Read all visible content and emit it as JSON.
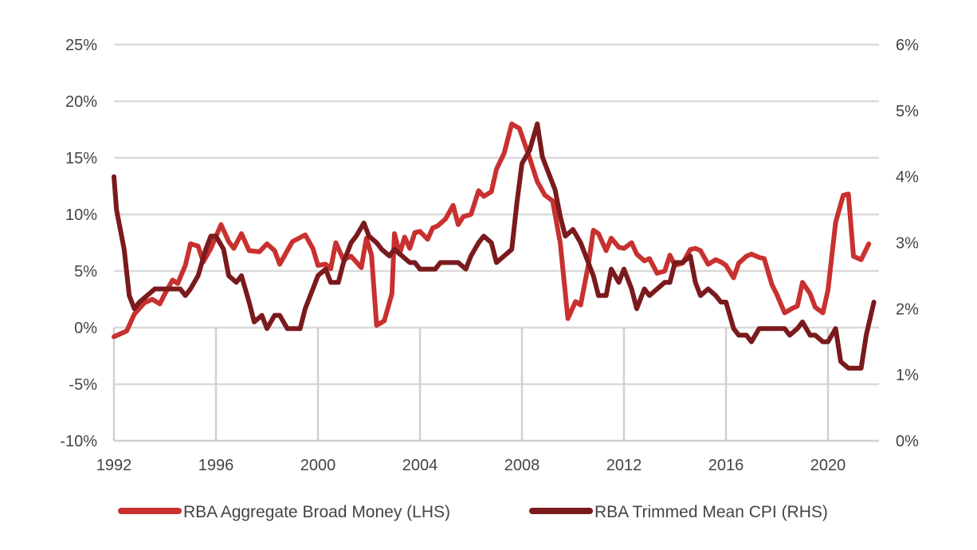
{
  "chart_data": {
    "type": "line",
    "title": "",
    "x_axis": {
      "min": 1992,
      "max": 2022,
      "tick_values": [
        1992,
        1996,
        2000,
        2004,
        2008,
        2012,
        2016,
        2020
      ],
      "tick_labels": [
        "1992",
        "1996",
        "2000",
        "2004",
        "2008",
        "2012",
        "2016",
        "2020"
      ]
    },
    "y_left": {
      "min": -10,
      "max": 25,
      "tick_values": [
        -10,
        -5,
        0,
        5,
        10,
        15,
        20,
        25
      ],
      "tick_labels": [
        "-10%",
        "-5%",
        "0%",
        "5%",
        "10%",
        "15%",
        "20%",
        "25%"
      ]
    },
    "y_right": {
      "min": 0,
      "max": 6,
      "tick_values": [
        0,
        1,
        2,
        3,
        4,
        5,
        6
      ],
      "tick_labels": [
        "0%",
        "1%",
        "2%",
        "3%",
        "4%",
        "5%",
        "6%"
      ]
    },
    "grid": "horizontal",
    "legend_position": "bottom",
    "series": [
      {
        "name": "RBA Aggregate Broad Money (LHS)",
        "axis": "left",
        "color": "#c8312f",
        "points": [
          [
            1992.0,
            -0.8
          ],
          [
            1992.5,
            -0.3
          ],
          [
            1992.8,
            1.2
          ],
          [
            1993.2,
            2.2
          ],
          [
            1993.5,
            2.5
          ],
          [
            1993.8,
            2.1
          ],
          [
            1994.0,
            3.0
          ],
          [
            1994.3,
            4.2
          ],
          [
            1994.5,
            3.9
          ],
          [
            1994.8,
            5.5
          ],
          [
            1995.0,
            7.4
          ],
          [
            1995.3,
            7.2
          ],
          [
            1995.5,
            5.8
          ],
          [
            1995.8,
            7.0
          ],
          [
            1996.2,
            9.1
          ],
          [
            1996.5,
            7.6
          ],
          [
            1996.7,
            7.0
          ],
          [
            1997.0,
            8.3
          ],
          [
            1997.3,
            6.8
          ],
          [
            1997.7,
            6.7
          ],
          [
            1998.0,
            7.4
          ],
          [
            1998.3,
            6.8
          ],
          [
            1998.5,
            5.6
          ],
          [
            1998.8,
            6.8
          ],
          [
            1999.0,
            7.6
          ],
          [
            1999.5,
            8.2
          ],
          [
            1999.8,
            7.0
          ],
          [
            2000.0,
            5.5
          ],
          [
            2000.3,
            5.6
          ],
          [
            2000.5,
            5.2
          ],
          [
            2000.7,
            7.5
          ],
          [
            2001.0,
            6.0
          ],
          [
            2001.3,
            6.3
          ],
          [
            2001.7,
            5.3
          ],
          [
            2001.9,
            7.9
          ],
          [
            2002.1,
            6.4
          ],
          [
            2002.3,
            0.2
          ],
          [
            2002.6,
            0.6
          ],
          [
            2002.9,
            3.0
          ],
          [
            2003.0,
            8.3
          ],
          [
            2003.2,
            6.5
          ],
          [
            2003.4,
            8.0
          ],
          [
            2003.6,
            7.0
          ],
          [
            2003.8,
            8.4
          ],
          [
            2004.0,
            8.5
          ],
          [
            2004.3,
            7.8
          ],
          [
            2004.5,
            8.8
          ],
          [
            2004.7,
            9.0
          ],
          [
            2005.0,
            9.6
          ],
          [
            2005.3,
            10.8
          ],
          [
            2005.5,
            9.1
          ],
          [
            2005.7,
            9.8
          ],
          [
            2006.0,
            10.0
          ],
          [
            2006.3,
            12.1
          ],
          [
            2006.5,
            11.6
          ],
          [
            2006.8,
            12.0
          ],
          [
            2007.0,
            14.0
          ],
          [
            2007.3,
            15.4
          ],
          [
            2007.6,
            18.0
          ],
          [
            2007.9,
            17.6
          ],
          [
            2008.3,
            15.0
          ],
          [
            2008.6,
            12.9
          ],
          [
            2008.9,
            11.7
          ],
          [
            2009.2,
            11.2
          ],
          [
            2009.5,
            7.5
          ],
          [
            2009.8,
            0.8
          ],
          [
            2010.1,
            2.3
          ],
          [
            2010.3,
            2.0
          ],
          [
            2010.6,
            5.5
          ],
          [
            2010.8,
            8.6
          ],
          [
            2011.0,
            8.3
          ],
          [
            2011.3,
            6.8
          ],
          [
            2011.5,
            7.9
          ],
          [
            2011.8,
            7.1
          ],
          [
            2012.0,
            7.0
          ],
          [
            2012.3,
            7.5
          ],
          [
            2012.5,
            6.5
          ],
          [
            2012.8,
            5.9
          ],
          [
            2013.0,
            6.1
          ],
          [
            2013.3,
            4.8
          ],
          [
            2013.6,
            5.0
          ],
          [
            2013.8,
            6.4
          ],
          [
            2014.0,
            5.5
          ],
          [
            2014.3,
            5.7
          ],
          [
            2014.6,
            6.9
          ],
          [
            2014.8,
            7.0
          ],
          [
            2015.0,
            6.8
          ],
          [
            2015.3,
            5.6
          ],
          [
            2015.6,
            6.0
          ],
          [
            2015.8,
            5.8
          ],
          [
            2016.0,
            5.5
          ],
          [
            2016.3,
            4.4
          ],
          [
            2016.5,
            5.7
          ],
          [
            2016.8,
            6.3
          ],
          [
            2017.0,
            6.5
          ],
          [
            2017.3,
            6.2
          ],
          [
            2017.5,
            6.1
          ],
          [
            2017.8,
            3.8
          ],
          [
            2018.0,
            2.9
          ],
          [
            2018.3,
            1.3
          ],
          [
            2018.6,
            1.7
          ],
          [
            2018.8,
            1.9
          ],
          [
            2019.0,
            4.0
          ],
          [
            2019.3,
            3.0
          ],
          [
            2019.5,
            1.8
          ],
          [
            2019.8,
            1.3
          ],
          [
            2020.0,
            3.3
          ],
          [
            2020.3,
            9.3
          ],
          [
            2020.6,
            11.7
          ],
          [
            2020.8,
            11.8
          ],
          [
            2021.0,
            6.3
          ],
          [
            2021.3,
            6.0
          ],
          [
            2021.6,
            7.4
          ]
        ]
      },
      {
        "name": "RBA Trimmed Mean CPI (RHS)",
        "axis": "right",
        "color": "#7a1a1d",
        "points": [
          [
            1992.0,
            4.0
          ],
          [
            1992.1,
            3.5
          ],
          [
            1992.4,
            2.9
          ],
          [
            1992.6,
            2.2
          ],
          [
            1992.8,
            2.0
          ],
          [
            1993.0,
            2.1
          ],
          [
            1993.3,
            2.2
          ],
          [
            1993.6,
            2.3
          ],
          [
            1994.0,
            2.3
          ],
          [
            1994.3,
            2.3
          ],
          [
            1994.6,
            2.3
          ],
          [
            1994.8,
            2.2
          ],
          [
            1995.0,
            2.3
          ],
          [
            1995.3,
            2.5
          ],
          [
            1995.6,
            2.9
          ],
          [
            1995.8,
            3.1
          ],
          [
            1996.0,
            3.1
          ],
          [
            1996.3,
            2.9
          ],
          [
            1996.5,
            2.5
          ],
          [
            1996.8,
            2.4
          ],
          [
            1997.0,
            2.5
          ],
          [
            1997.3,
            2.1
          ],
          [
            1997.5,
            1.8
          ],
          [
            1997.8,
            1.9
          ],
          [
            1998.0,
            1.7
          ],
          [
            1998.3,
            1.9
          ],
          [
            1998.5,
            1.9
          ],
          [
            1998.8,
            1.7
          ],
          [
            1999.0,
            1.7
          ],
          [
            1999.3,
            1.7
          ],
          [
            1999.5,
            2.0
          ],
          [
            1999.8,
            2.3
          ],
          [
            2000.0,
            2.5
          ],
          [
            2000.3,
            2.6
          ],
          [
            2000.5,
            2.4
          ],
          [
            2000.8,
            2.4
          ],
          [
            2001.0,
            2.7
          ],
          [
            2001.3,
            3.0
          ],
          [
            2001.5,
            3.1
          ],
          [
            2001.8,
            3.3
          ],
          [
            2002.0,
            3.1
          ],
          [
            2002.3,
            3.0
          ],
          [
            2002.5,
            2.9
          ],
          [
            2002.8,
            2.8
          ],
          [
            2003.0,
            2.9
          ],
          [
            2003.3,
            2.8
          ],
          [
            2003.6,
            2.7
          ],
          [
            2003.8,
            2.7
          ],
          [
            2004.0,
            2.6
          ],
          [
            2004.3,
            2.6
          ],
          [
            2004.6,
            2.6
          ],
          [
            2004.8,
            2.7
          ],
          [
            2005.0,
            2.7
          ],
          [
            2005.5,
            2.7
          ],
          [
            2005.8,
            2.6
          ],
          [
            2006.0,
            2.8
          ],
          [
            2006.3,
            3.0
          ],
          [
            2006.5,
            3.1
          ],
          [
            2006.8,
            3.0
          ],
          [
            2007.0,
            2.7
          ],
          [
            2007.3,
            2.8
          ],
          [
            2007.6,
            2.9
          ],
          [
            2007.8,
            3.6
          ],
          [
            2008.0,
            4.2
          ],
          [
            2008.3,
            4.4
          ],
          [
            2008.6,
            4.8
          ],
          [
            2008.8,
            4.3
          ],
          [
            2009.0,
            4.1
          ],
          [
            2009.3,
            3.8
          ],
          [
            2009.5,
            3.4
          ],
          [
            2009.7,
            3.1
          ],
          [
            2010.0,
            3.2
          ],
          [
            2010.3,
            3.0
          ],
          [
            2010.5,
            2.8
          ],
          [
            2010.8,
            2.5
          ],
          [
            2011.0,
            2.2
          ],
          [
            2011.3,
            2.2
          ],
          [
            2011.5,
            2.6
          ],
          [
            2011.8,
            2.4
          ],
          [
            2012.0,
            2.6
          ],
          [
            2012.3,
            2.3
          ],
          [
            2012.5,
            2.0
          ],
          [
            2012.8,
            2.3
          ],
          [
            2013.0,
            2.2
          ],
          [
            2013.3,
            2.3
          ],
          [
            2013.6,
            2.4
          ],
          [
            2013.8,
            2.4
          ],
          [
            2014.0,
            2.7
          ],
          [
            2014.3,
            2.7
          ],
          [
            2014.6,
            2.8
          ],
          [
            2014.8,
            2.4
          ],
          [
            2015.0,
            2.2
          ],
          [
            2015.3,
            2.3
          ],
          [
            2015.6,
            2.2
          ],
          [
            2015.8,
            2.1
          ],
          [
            2016.0,
            2.1
          ],
          [
            2016.3,
            1.7
          ],
          [
            2016.5,
            1.6
          ],
          [
            2016.8,
            1.6
          ],
          [
            2017.0,
            1.5
          ],
          [
            2017.3,
            1.7
          ],
          [
            2017.6,
            1.7
          ],
          [
            2017.8,
            1.7
          ],
          [
            2018.0,
            1.7
          ],
          [
            2018.3,
            1.7
          ],
          [
            2018.5,
            1.6
          ],
          [
            2018.8,
            1.7
          ],
          [
            2019.0,
            1.8
          ],
          [
            2019.3,
            1.6
          ],
          [
            2019.5,
            1.6
          ],
          [
            2019.8,
            1.5
          ],
          [
            2020.0,
            1.5
          ],
          [
            2020.3,
            1.7
          ],
          [
            2020.5,
            1.2
          ],
          [
            2020.8,
            1.1
          ],
          [
            2021.0,
            1.1
          ],
          [
            2021.3,
            1.1
          ],
          [
            2021.5,
            1.6
          ],
          [
            2021.8,
            2.1
          ]
        ]
      }
    ]
  }
}
